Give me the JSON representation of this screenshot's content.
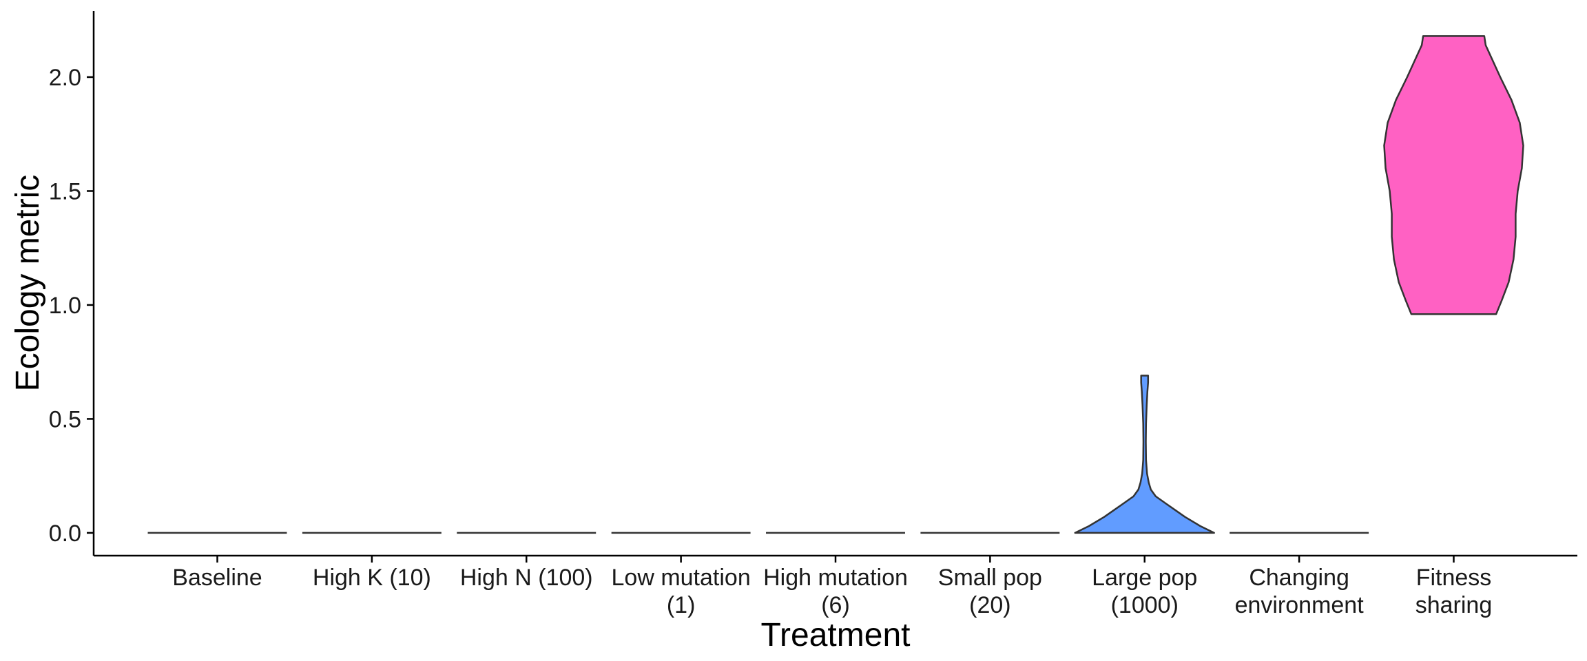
{
  "chart_data": {
    "type": "violin",
    "title": "",
    "xlabel": "Treatment",
    "ylabel": "Ecology metric",
    "ylim": [
      -0.1,
      2.29
    ],
    "yticks": [
      "0.0",
      "0.5",
      "1.0",
      "1.5",
      "2.0"
    ],
    "grid": false,
    "legend": "none",
    "categories": [
      {
        "label": [
          "Baseline"
        ],
        "color": "#000000",
        "min": 0,
        "max": 0,
        "density": []
      },
      {
        "label": [
          "High K (10)"
        ],
        "color": "#000000",
        "min": 0,
        "max": 0,
        "density": []
      },
      {
        "label": [
          "High N (100)"
        ],
        "color": "#000000",
        "min": 0,
        "max": 0,
        "density": []
      },
      {
        "label": [
          "Low mutation",
          "(1)"
        ],
        "color": "#000000",
        "min": 0,
        "max": 0,
        "density": []
      },
      {
        "label": [
          "High mutation",
          "(6)"
        ],
        "color": "#000000",
        "min": 0,
        "max": 0,
        "density": []
      },
      {
        "label": [
          "Small pop",
          "(20)"
        ],
        "color": "#000000",
        "min": 0,
        "max": 0,
        "density": []
      },
      {
        "label": [
          "Large pop",
          "(1000)"
        ],
        "color": "#619CFF",
        "min": 0.0,
        "max": 0.69,
        "density": [
          [
            0.0,
            1.0
          ],
          [
            0.03,
            0.8
          ],
          [
            0.07,
            0.58
          ],
          [
            0.1,
            0.44
          ],
          [
            0.13,
            0.3
          ],
          [
            0.16,
            0.16
          ],
          [
            0.19,
            0.09
          ],
          [
            0.22,
            0.06
          ],
          [
            0.26,
            0.035
          ],
          [
            0.32,
            0.02
          ],
          [
            0.4,
            0.017
          ],
          [
            0.48,
            0.02
          ],
          [
            0.56,
            0.03
          ],
          [
            0.62,
            0.04
          ],
          [
            0.66,
            0.05
          ],
          [
            0.69,
            0.05
          ]
        ]
      },
      {
        "label": [
          "Changing",
          "environment"
        ],
        "color": "#000000",
        "min": 0,
        "max": 0,
        "density": []
      },
      {
        "label": [
          "Fitness",
          "sharing"
        ],
        "color": "#FF61C3",
        "min": 0.96,
        "max": 2.18,
        "density": [
          [
            0.96,
            0.61
          ],
          [
            1.02,
            0.69
          ],
          [
            1.1,
            0.79
          ],
          [
            1.2,
            0.86
          ],
          [
            1.3,
            0.89
          ],
          [
            1.4,
            0.89
          ],
          [
            1.5,
            0.92
          ],
          [
            1.6,
            0.98
          ],
          [
            1.7,
            1.0
          ],
          [
            1.8,
            0.95
          ],
          [
            1.9,
            0.83
          ],
          [
            2.0,
            0.67
          ],
          [
            2.08,
            0.55
          ],
          [
            2.14,
            0.46
          ],
          [
            2.18,
            0.44
          ]
        ]
      }
    ]
  }
}
